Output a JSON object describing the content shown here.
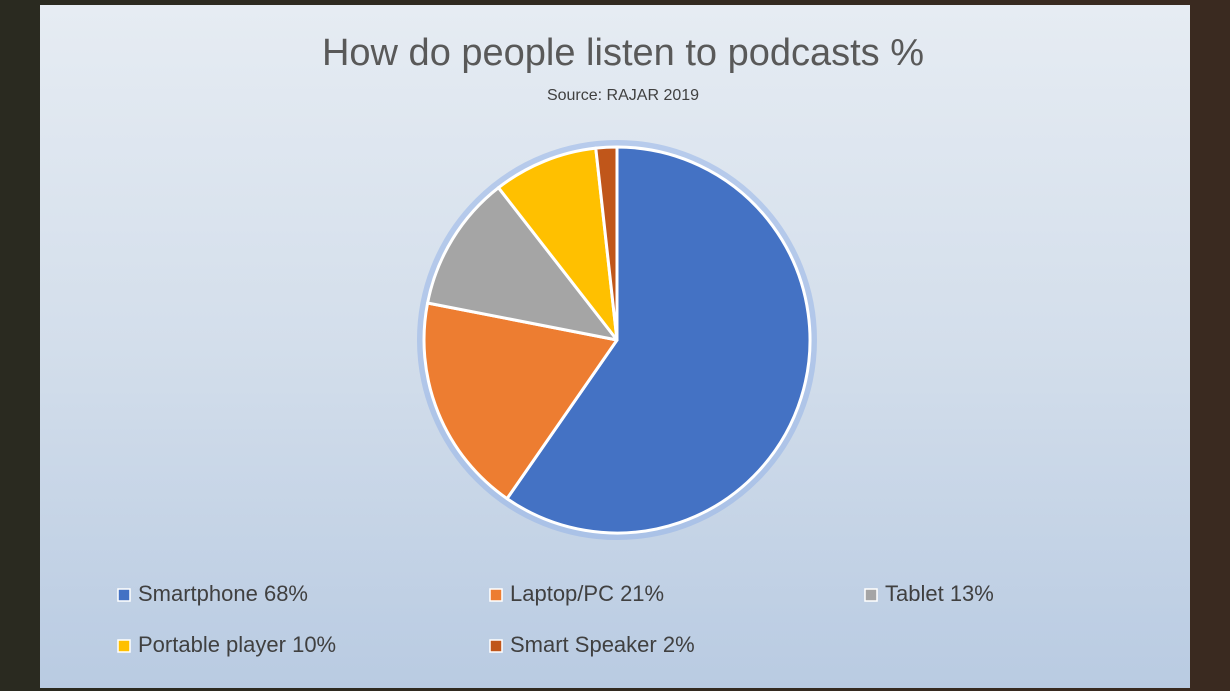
{
  "chart_data": {
    "type": "pie",
    "title": "How do people listen to podcasts %",
    "subtitle": "Source: RAJAR 2019",
    "categories": [
      "Smartphone 68%",
      "Laptop/PC 21%",
      "Tablet 13%",
      "Portable player 10%",
      "Smart Speaker 2%"
    ],
    "values": [
      68,
      21,
      13,
      10,
      2
    ],
    "colors": [
      "#4472c4",
      "#ed7d31",
      "#a5a5a5",
      "#ffc000",
      "#c0561a"
    ],
    "legend": "bottom"
  }
}
